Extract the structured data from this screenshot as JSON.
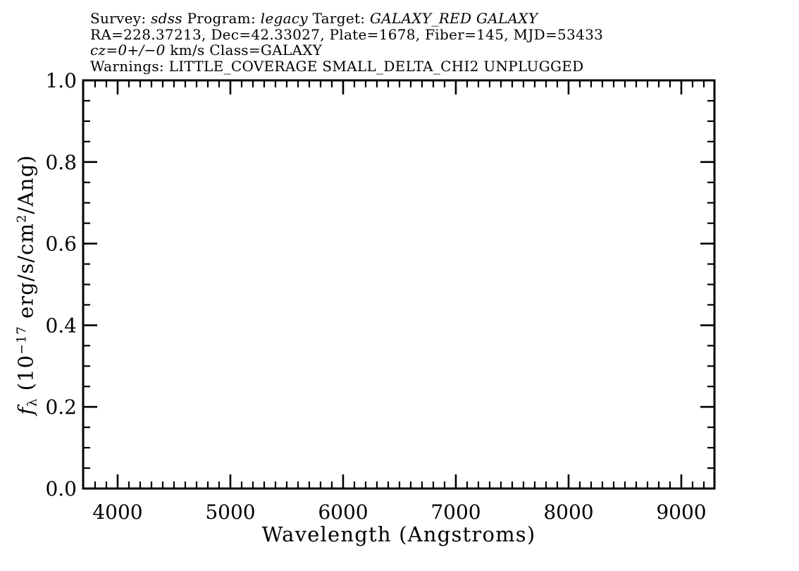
{
  "header": {
    "lines": [
      {
        "name": "survey-line",
        "segments": [
          {
            "text": "Survey: ",
            "style": "normal"
          },
          {
            "text": "sdss",
            "style": "italic"
          },
          {
            "text": " Program: ",
            "style": "normal"
          },
          {
            "text": "legacy",
            "style": "italic"
          },
          {
            "text": " Target: ",
            "style": "normal"
          },
          {
            "text": "GALAXY_RED GALAXY",
            "style": "italic"
          }
        ]
      },
      {
        "name": "coords-line",
        "segments": [
          {
            "text": "RA=228.37213, Dec=42.33027, Plate=1678, Fiber=145, MJD=53433",
            "style": "normal"
          }
        ]
      },
      {
        "name": "redshift-line",
        "segments": [
          {
            "text": "cz=0+/−0",
            "style": "italic"
          },
          {
            "text": " km/s Class=GALAXY",
            "style": "normal"
          }
        ]
      },
      {
        "name": "warnings-line",
        "segments": [
          {
            "text": "Warnings: LITTLE_COVERAGE SMALL_DELTA_CHI2 UNPLUGGED",
            "style": "normal"
          }
        ]
      }
    ]
  },
  "chart_data": {
    "type": "line",
    "title": "",
    "xlabel": "Wavelength (Angstroms)",
    "ylabel": "fλ (10^-17 erg/s/cm^2/Ang)",
    "ylabel_segments": [
      {
        "text": "f",
        "style": "italic"
      },
      {
        "text": "λ",
        "style": "sub"
      },
      {
        "text": " (10",
        "style": "normal"
      },
      {
        "text": "−17",
        "style": "sup"
      },
      {
        "text": " erg/s/cm",
        "style": "normal"
      },
      {
        "text": "2",
        "style": "sup"
      },
      {
        "text": "/Ang)",
        "style": "normal"
      }
    ],
    "xlim": [
      3694,
      9294
    ],
    "ylim": [
      0.0,
      1.0
    ],
    "x_major_ticks": [
      4000,
      5000,
      6000,
      7000,
      8000,
      9000
    ],
    "x_tick_labels": [
      "4000",
      "5000",
      "6000",
      "7000",
      "8000",
      "9000"
    ],
    "x_minor_step": 100,
    "y_major_ticks": [
      0.0,
      0.2,
      0.4,
      0.6,
      0.8,
      1.0
    ],
    "y_tick_labels": [
      "0.0",
      "0.2",
      "0.4",
      "0.6",
      "0.8",
      "1.0"
    ],
    "y_minor_step": 0.05,
    "grid": false,
    "legend": null,
    "series": [],
    "frame_color": "#000000",
    "background_color": "#ffffff"
  }
}
